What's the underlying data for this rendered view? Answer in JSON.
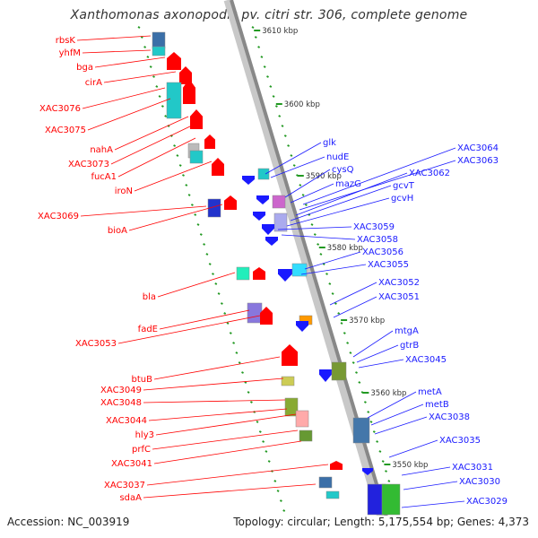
{
  "title": "Xanthomonas axonopodis pv. citri str. 306, complete genome",
  "accession": "Accession: NC_003919",
  "topology": "Topology: circular; Length: 5,175,554 bp; Genes: 4,373",
  "colors": {
    "forward": "#ff0000",
    "reverse": "#1a1aff",
    "backbone": "#888888",
    "ticks": "#229922"
  },
  "ruler_labels": [
    "3610 kbp",
    "3600 kbp",
    "3590 kbp",
    "3580 kbp",
    "3570 kbp",
    "3560 kbp",
    "3550 kbp"
  ],
  "forward_genes": [
    "rbsK",
    "yhfM",
    "bga",
    "cirA",
    "XAC3076",
    "XAC3075",
    "nahA",
    "XAC3073",
    "fucA1",
    "iroN",
    "XAC3069",
    "bioA",
    "bla",
    "fadE",
    "XAC3053",
    "btuB",
    "XAC3049",
    "XAC3048",
    "XAC3044",
    "hly3",
    "prfC",
    "XAC3041",
    "XAC3037",
    "sdaA"
  ],
  "reverse_genes": [
    "glk",
    "nudE",
    "cysQ",
    "mazG",
    "XAC3064",
    "XAC3063",
    "XAC3062",
    "gcvT",
    "gcvH",
    "XAC3059",
    "XAC3058",
    "XAC3056",
    "XAC3055",
    "XAC3052",
    "XAC3051",
    "mtgA",
    "gtrB",
    "XAC3045",
    "metA",
    "metB",
    "XAC3038",
    "XAC3035",
    "XAC3031",
    "XAC3030",
    "XAC3029"
  ]
}
